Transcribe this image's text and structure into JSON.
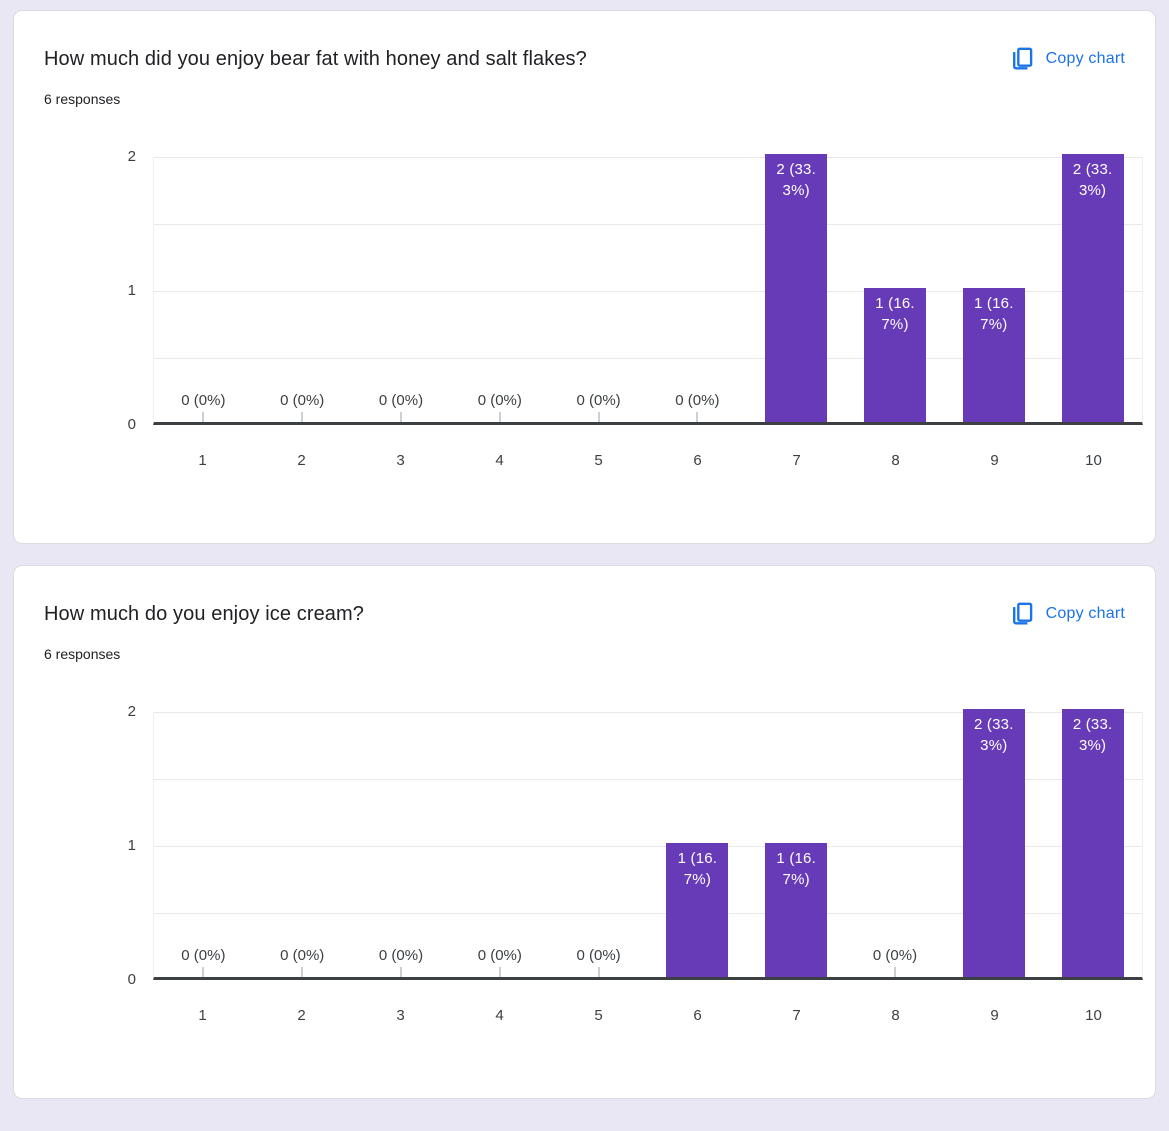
{
  "colors": {
    "page_background": "#e9e7f4",
    "card_background": "#ffffff",
    "accent_blue": "#1a73e8",
    "bar_purple": "#673ab7",
    "axis_dark": "#3c4043",
    "gridline_gray": "#e9e9e9"
  },
  "icons": {
    "copy_chart": "copy-icon (two overlapping pages, blue outline)"
  },
  "cards": [
    {
      "title": "How much did you enjoy bear fat with honey and salt flakes?",
      "responses": "6 responses",
      "copy_button_label": "Copy chart"
    },
    {
      "title": "How much do you enjoy ice cream?",
      "responses": "6 responses",
      "copy_button_label": "Copy chart"
    }
  ],
  "chart_data": [
    {
      "type": "bar",
      "title": "How much did you enjoy bear fat with honey and salt flakes?",
      "subtitle": "6 responses",
      "categories": [
        "1",
        "2",
        "3",
        "4",
        "5",
        "6",
        "7",
        "8",
        "9",
        "10"
      ],
      "values": [
        0,
        0,
        0,
        0,
        0,
        0,
        2,
        1,
        1,
        2
      ],
      "point_labels": [
        "0 (0%)",
        "0 (0%)",
        "0 (0%)",
        "0 (0%)",
        "0 (0%)",
        "0 (0%)",
        "2 (33.3%)",
        "1 (16.7%)",
        "1 (16.7%)",
        "2 (33.3%)"
      ],
      "bar_label_lines": [
        null,
        null,
        null,
        null,
        null,
        null,
        [
          "2 (33.",
          "3%)"
        ],
        [
          "1 (16.",
          "7%)"
        ],
        [
          "1 (16.",
          "7%)"
        ],
        [
          "2 (33.",
          "3%)"
        ]
      ],
      "xlabel": "",
      "ylabel": "",
      "ylim": [
        0,
        2
      ],
      "yticks": [
        0,
        1,
        2
      ],
      "gridlines": [
        0.5,
        1,
        1.5,
        2
      ],
      "legend": "none",
      "bar_color": "#673ab7"
    },
    {
      "type": "bar",
      "title": "How much do you enjoy ice cream?",
      "subtitle": "6 responses",
      "categories": [
        "1",
        "2",
        "3",
        "4",
        "5",
        "6",
        "7",
        "8",
        "9",
        "10"
      ],
      "values": [
        0,
        0,
        0,
        0,
        0,
        1,
        1,
        0,
        2,
        2
      ],
      "point_labels": [
        "0 (0%)",
        "0 (0%)",
        "0 (0%)",
        "0 (0%)",
        "0 (0%)",
        "1 (16.7%)",
        "1 (16.7%)",
        "0 (0%)",
        "2 (33.3%)",
        "2 (33.3%)"
      ],
      "bar_label_lines": [
        null,
        null,
        null,
        null,
        null,
        [
          "1 (16.",
          "7%)"
        ],
        [
          "1 (16.",
          "7%)"
        ],
        null,
        [
          "2 (33.",
          "3%)"
        ],
        [
          "2 (33.",
          "3%)"
        ]
      ],
      "xlabel": "",
      "ylabel": "",
      "ylim": [
        0,
        2
      ],
      "yticks": [
        0,
        1,
        2
      ],
      "gridlines": [
        0.5,
        1,
        1.5,
        2
      ],
      "legend": "none",
      "bar_color": "#673ab7"
    }
  ]
}
